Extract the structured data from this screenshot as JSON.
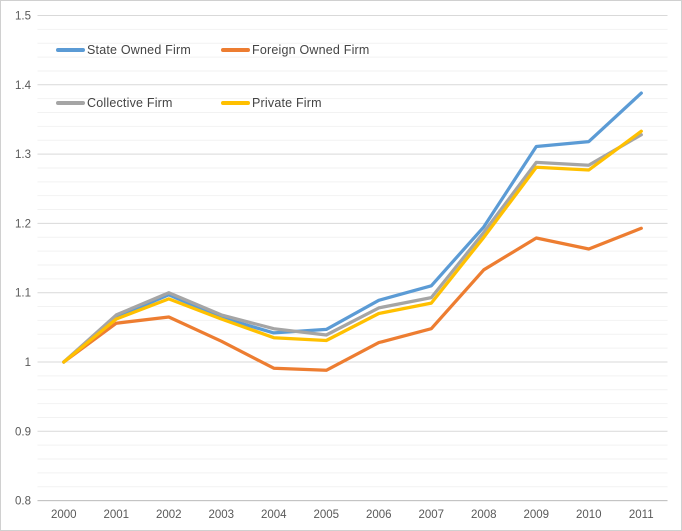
{
  "chart_data": {
    "type": "line",
    "title": "",
    "xlabel": "",
    "ylabel": "",
    "x": [
      2000,
      2001,
      2002,
      2003,
      2004,
      2005,
      2006,
      2007,
      2008,
      2009,
      2010,
      2011
    ],
    "x_tick_labels": [
      "2000",
      "2001",
      "2002",
      "2003",
      "2004",
      "2005",
      "2006",
      "2007",
      "2008",
      "2009",
      "2010",
      "2011"
    ],
    "ylim": [
      0.8,
      1.5
    ],
    "y_major_step": 0.1,
    "y_minor_step": 0.02,
    "y_tick_labels": [
      "0.8",
      "0.9",
      "1",
      "1.1",
      "1.2",
      "1.3",
      "1.4",
      "1.5"
    ],
    "grid": true,
    "legend_position": "top-left-inside",
    "series": [
      {
        "name": "State Owned Firm",
        "color": "#5B9BD5",
        "values": [
          1.0,
          1.065,
          1.097,
          1.064,
          1.042,
          1.047,
          1.089,
          1.11,
          1.195,
          1.311,
          1.318,
          1.388
        ]
      },
      {
        "name": "Foreign Owned Firm",
        "color": "#ED7D31",
        "values": [
          1.0,
          1.056,
          1.065,
          1.03,
          0.991,
          0.988,
          1.028,
          1.048,
          1.133,
          1.179,
          1.163,
          1.193
        ]
      },
      {
        "name": "Collective Firm",
        "color": "#A5A5A5",
        "values": [
          1.0,
          1.068,
          1.1,
          1.068,
          1.048,
          1.039,
          1.078,
          1.093,
          1.187,
          1.288,
          1.284,
          1.328
        ]
      },
      {
        "name": "Private Firm",
        "color": "#FFC000",
        "values": [
          1.0,
          1.062,
          1.091,
          1.062,
          1.035,
          1.031,
          1.07,
          1.085,
          1.18,
          1.281,
          1.277,
          1.333
        ]
      }
    ],
    "colors": {
      "major_gridline": "#D9D9D9",
      "minor_gridline": "#F2F2F2",
      "axis_line": "#BFBFBF",
      "tick_label": "#595959",
      "legend_text": "#444444",
      "background": "#FFFFFF",
      "chart_border": "#D0D0D0"
    }
  }
}
